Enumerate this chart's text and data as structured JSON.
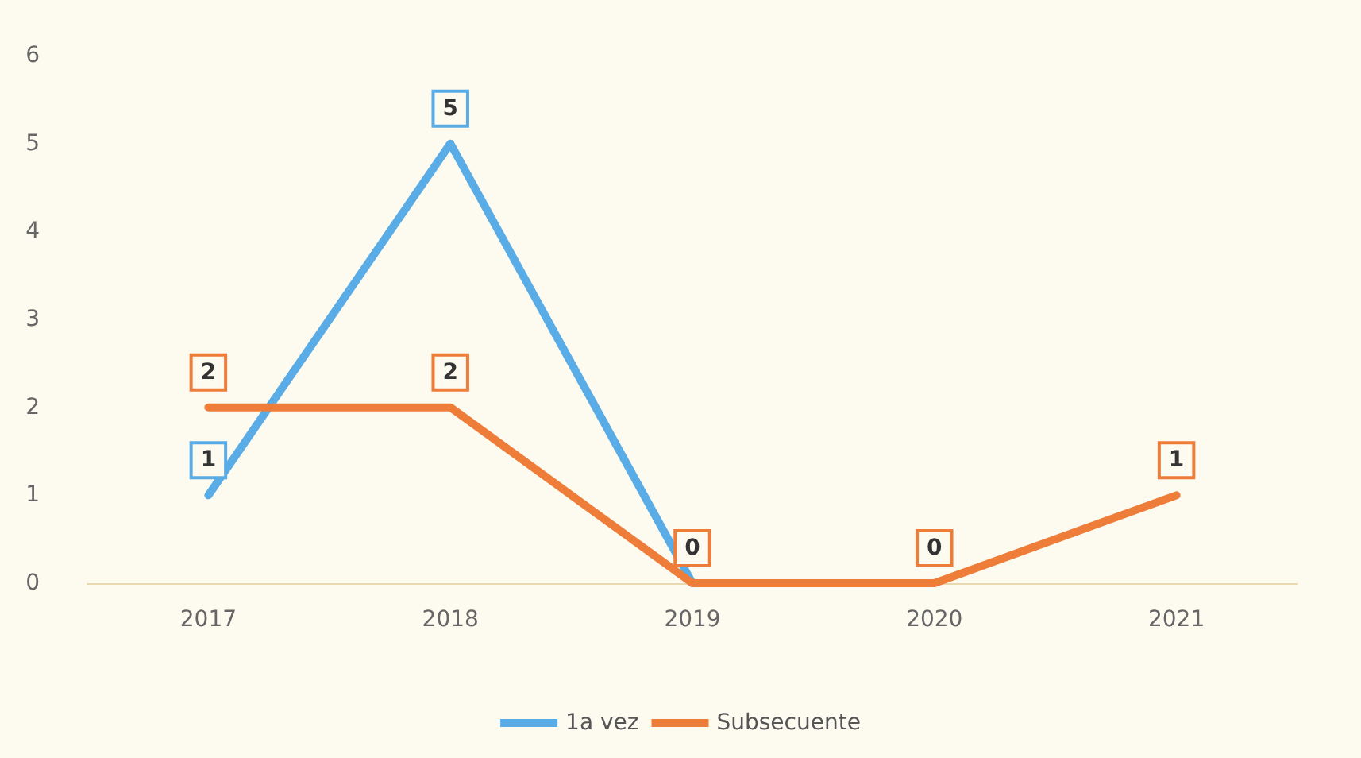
{
  "chart_data": {
    "type": "line",
    "categories": [
      "2017",
      "2018",
      "2019",
      "2020",
      "2021"
    ],
    "series": [
      {
        "name": "1a vez",
        "color": "#5aace6",
        "values": [
          1,
          5,
          0,
          null,
          null
        ],
        "value_labels": [
          "1",
          "5",
          null,
          null,
          null
        ]
      },
      {
        "name": "Subsecuente",
        "color": "#ee7d3a",
        "values": [
          2,
          2,
          0,
          0,
          1
        ],
        "value_labels": [
          "2",
          "2",
          "0",
          "0",
          "1"
        ]
      }
    ],
    "ylim": [
      0,
      6
    ],
    "yticks": [
      0,
      1,
      2,
      3,
      4,
      5,
      6
    ],
    "grid": false,
    "legend": "bottom",
    "marker": "none",
    "line_style": "solid"
  }
}
